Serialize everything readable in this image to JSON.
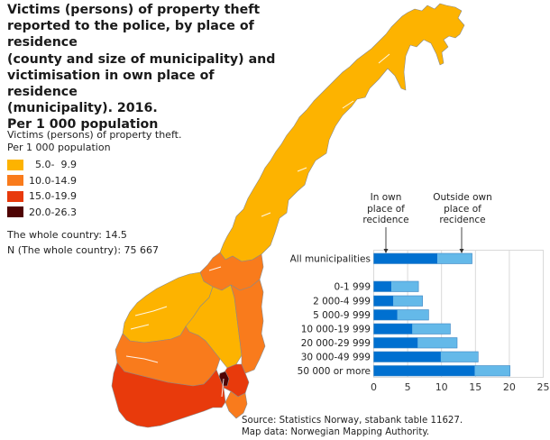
{
  "title": "Victims (persons) of property theft\nreported to the police, by place of residence\n(county and size of municipality) and\nvictimisation in own place of residence\n(municipality). 2016.\nPer 1 000 population",
  "legend": {
    "heading": "Victims (persons) of property theft.\nPer 1 000 population",
    "items": [
      {
        "label": "  5.0-  9.9",
        "color": "#FDB300"
      },
      {
        "label": "10.0-14.9",
        "color": "#F97B1C"
      },
      {
        "label": "15.0-19.9",
        "color": "#E83A0C"
      },
      {
        "label": "20.0-26.3",
        "color": "#4F0404"
      }
    ],
    "whole_country": "The whole country: 14.5",
    "n_whole_country": "N (The whole country): 75 667"
  },
  "annotations": {
    "own": "In own\nplace of\nrecidence",
    "outside": "Outside own\nplace of\nrecidence"
  },
  "source": {
    "line1": "Source: Statistics Norway, stabank table 11627.",
    "line2": "Map data: Norwegian Mapping Authority."
  },
  "colors": {
    "own": "#0070D0",
    "outside": "#64B9E9",
    "grid": "#D9D9D9",
    "map_border": "#8A8A8A"
  },
  "chart_data": {
    "type": "bar",
    "orientation": "horizontal",
    "stacked": true,
    "title": "Victims (persons) of property theft reported to the police, by size of municipality and victimisation in own place of residence. 2016. Per 1 000 population",
    "categories": [
      "All municipalities",
      "0-1 999",
      "2 000-4 999",
      "5 000-9 999",
      "10 000-19 999",
      "20 000-29 999",
      "30 000-49 999",
      "50 000 or more"
    ],
    "series": [
      {
        "name": "In own place of recidence",
        "values": [
          9.4,
          2.6,
          2.9,
          3.5,
          5.7,
          6.5,
          9.9,
          14.9
        ]
      },
      {
        "name": "Outside own place of recidence",
        "values": [
          5.1,
          4.0,
          4.3,
          4.6,
          5.6,
          5.8,
          5.5,
          5.2
        ]
      }
    ],
    "totals": [
      14.5,
      6.6,
      7.2,
      8.1,
      11.3,
      12.3,
      15.4,
      20.1
    ],
    "xlabel": "",
    "ylabel": "",
    "xlim": [
      0,
      25
    ],
    "xticks": [
      0,
      5,
      10,
      15,
      20,
      25
    ],
    "grid": true,
    "legend_position": "annotations above bars"
  },
  "map_data": {
    "type": "choropleth",
    "region": "Norway counties",
    "classes": [
      "5.0-9.9",
      "10.0-14.9",
      "15.0-19.9",
      "20.0-26.3"
    ]
  }
}
